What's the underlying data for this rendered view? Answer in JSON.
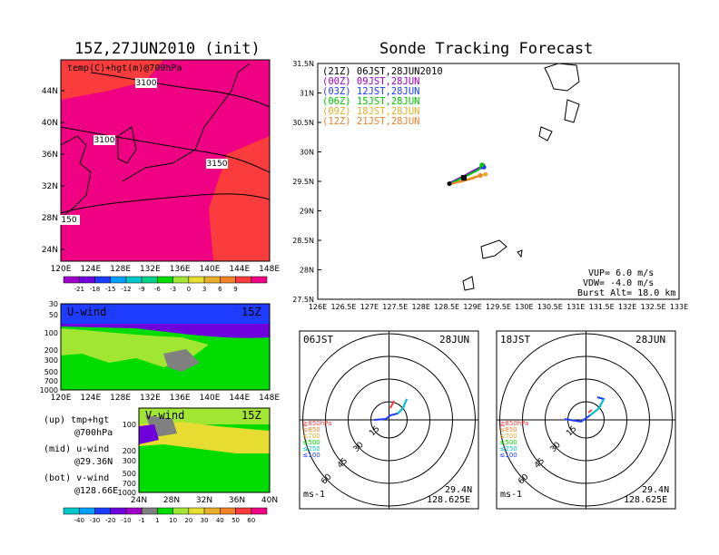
{
  "left": {
    "title": "15Z,27JUN2010 (init)",
    "map": {
      "label": "temp(C)+hgt(m)@700hPa",
      "lat_ticks": [
        "44N",
        "40N",
        "36N",
        "32N",
        "28N",
        "24N"
      ],
      "lon_ticks": [
        "120E",
        "124E",
        "128E",
        "132E",
        "136E",
        "140E",
        "144E",
        "148E"
      ],
      "contours": [
        "3100",
        "3100",
        "3150",
        "150"
      ]
    },
    "temp_colorbar": {
      "labels": [
        "-21",
        "-18",
        "-15",
        "-12",
        "-9",
        "-6",
        "-3",
        "0",
        "3",
        "6",
        "9"
      ]
    },
    "uwind": {
      "label": "U-wind",
      "time": "15Z",
      "p_ticks": [
        "30",
        "50",
        "100",
        "200",
        "300",
        "500",
        "700",
        "1000"
      ],
      "lon_ticks": [
        "120E",
        "124E",
        "128E",
        "132E",
        "136E",
        "140E",
        "144E",
        "148E"
      ]
    },
    "vwind": {
      "label": "V-wind",
      "time": "15Z",
      "p_ticks": [
        "100",
        "200",
        "300",
        "500",
        "700",
        "1000"
      ],
      "lat_ticks": [
        "24N",
        "28N",
        "32N",
        "36N",
        "40N"
      ]
    },
    "legend": {
      "up_title": "(up) tmp+hgt",
      "up_val": "@700hPa",
      "mid_title": "(mid) u-wind",
      "mid_val": "@29.36N",
      "bot_title": "(bot) v-wind",
      "bot_val": "@128.66E"
    },
    "wind_colorbar": {
      "labels": [
        "-40",
        "-30",
        "-20",
        "-10",
        "-1",
        "1",
        "10",
        "20",
        "30",
        "40",
        "50",
        "60"
      ]
    }
  },
  "right": {
    "title": "Sonde Tracking Forecast",
    "legend": [
      {
        "code": "(21Z)",
        "time": "06JST,28JUN2010",
        "color": "#000000"
      },
      {
        "code": "(00Z)",
        "time": "09JST,28JUN",
        "color": "#a000c8"
      },
      {
        "code": "(03Z)",
        "time": "12JST,28JUN",
        "color": "#1e3cff"
      },
      {
        "code": "(06Z)",
        "time": "15JST,28JUN",
        "color": "#00c800"
      },
      {
        "code": "(09Z)",
        "time": "18JST,28JUN",
        "color": "#e6af2d"
      },
      {
        "code": "(12Z)",
        "time": "21JST,28JUN",
        "color": "#f08228"
      }
    ],
    "lat_ticks": [
      "31.5N",
      "31N",
      "30.5N",
      "30N",
      "29.5N",
      "29N",
      "28.5N",
      "28N",
      "27.5N"
    ],
    "lon_ticks": [
      "126E",
      "126.5E",
      "127E",
      "127.5E",
      "128E",
      "128.5E",
      "129E",
      "129.5E",
      "130E",
      "130.5E",
      "131E",
      "131.5E",
      "132E",
      "132.5E",
      "133E"
    ],
    "params": {
      "vup": "VUP= 6.0 m/s",
      "vdw": "VDW= -4.0 m/s",
      "burst": "Burst Alt= 18.0 km"
    }
  },
  "hodographs": [
    {
      "time": "06JST",
      "date": "28JUN",
      "ring_labels": [
        "15",
        "30",
        "45",
        "60"
      ],
      "unit": "ms-1",
      "lat": "29.4N",
      "lon": "128.625E",
      "levels": [
        "≧850hPa",
        "≤850",
        "≤700",
        "≤500",
        "≤250",
        "≤100"
      ]
    },
    {
      "time": "18JST",
      "date": "28JUN",
      "ring_labels": [
        "15",
        "30",
        "45",
        "60"
      ],
      "unit": "ms-1",
      "lat": "29.4N",
      "lon": "128.625E",
      "levels": [
        "≧850hPa",
        "≤850",
        "≤700",
        "≤500",
        "≤250",
        "≤100"
      ]
    }
  ],
  "colors": {
    "temp_scale": [
      "#a000c8",
      "#6e00dc",
      "#1e3cff",
      "#00a0ff",
      "#00c8c8",
      "#00d28c",
      "#00dc00",
      "#a0e632",
      "#e6dc32",
      "#e6af2d",
      "#f08228",
      "#fa3c3c",
      "#f00082"
    ],
    "wind_scale": [
      "#00c8c8",
      "#00a0ff",
      "#1e3cff",
      "#6e00dc",
      "#a000c8",
      "#808080",
      "#00dc00",
      "#a0e632",
      "#e6dc32",
      "#e6af2d",
      "#f08228",
      "#fa3c3c",
      "#f00082"
    ],
    "level_colors": [
      "#fa3c3c",
      "#f08228",
      "#e6af2d",
      "#00dc00",
      "#00c8c8",
      "#1e3cff"
    ]
  },
  "chart_data": [
    {
      "type": "heatmap",
      "title": "15Z,27JUN2010 (init)",
      "variable": "temp(C)+hgt(m)@700hPa",
      "xlim": [
        120,
        150
      ],
      "ylim": [
        22,
        47
      ]
    },
    {
      "type": "heatmap",
      "title": "U-wind",
      "xlim": [
        120,
        150
      ],
      "ylim": [
        1000,
        30
      ]
    },
    {
      "type": "heatmap",
      "title": "V-wind",
      "xlim": [
        24,
        40
      ],
      "ylim": [
        1000,
        30
      ]
    },
    {
      "type": "line",
      "title": "Sonde Tracking Forecast",
      "xlim": [
        126,
        133
      ],
      "ylim": [
        27.5,
        31.5
      ],
      "series": [
        {
          "name": "(00Z) 09JST,28JUN",
          "x": [
            128.55,
            128.85,
            129.1,
            129.2
          ],
          "y": [
            29.47,
            29.6,
            29.72,
            29.77
          ]
        },
        {
          "name": "(03Z) 12JST,28JUN",
          "x": [
            128.55,
            128.85,
            129.1,
            129.22
          ],
          "y": [
            29.46,
            29.58,
            29.7,
            29.74
          ]
        },
        {
          "name": "(06Z) 15JST,28JUN",
          "x": [
            128.55,
            128.9,
            129.12,
            129.18
          ],
          "y": [
            29.45,
            29.6,
            29.7,
            29.78
          ]
        },
        {
          "name": "(09Z) 18JST,28JUN",
          "x": [
            128.55,
            128.85,
            129.05,
            129.25
          ],
          "y": [
            29.45,
            29.52,
            29.58,
            29.62
          ]
        },
        {
          "name": "(12Z) 21JST,28JUN",
          "x": [
            128.55,
            128.8,
            129.0,
            129.15
          ],
          "y": [
            29.45,
            29.5,
            29.55,
            29.6
          ]
        }
      ]
    }
  ]
}
